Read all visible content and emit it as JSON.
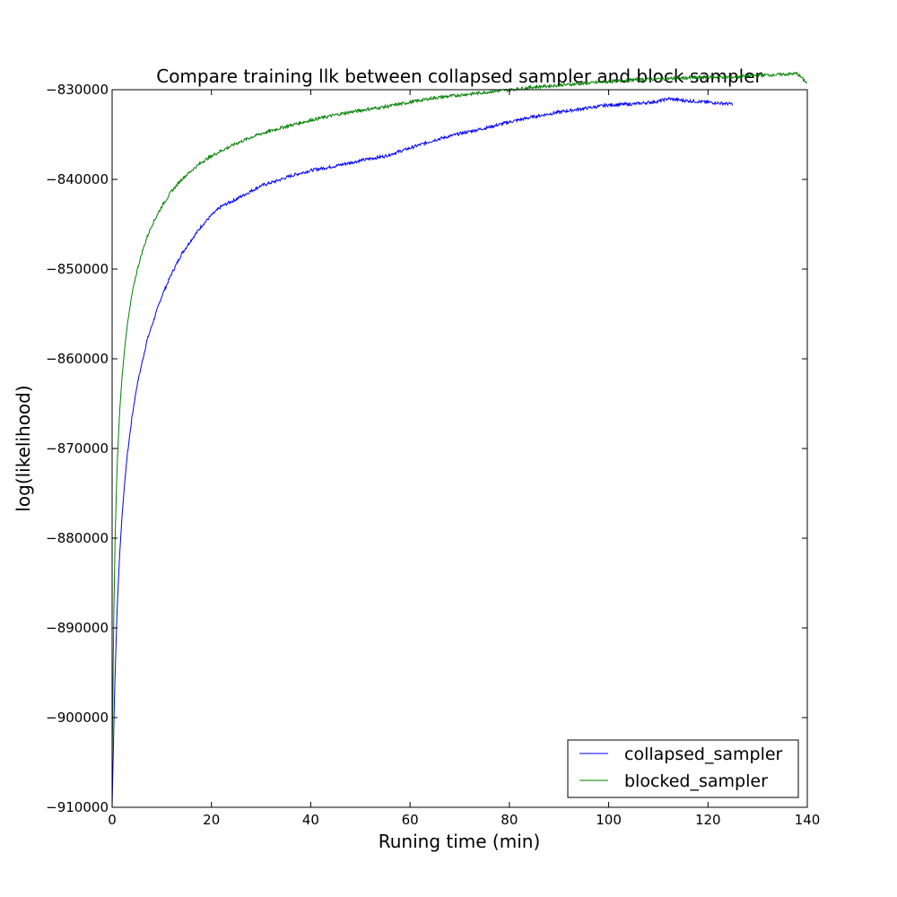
{
  "chart_data": {
    "type": "line",
    "title": "Compare training llk between collapsed sampler and block sampler",
    "xlabel": "Runing time (min)",
    "ylabel": "log(likelihood)",
    "xlim": [
      0,
      140
    ],
    "ylim": [
      -910000,
      -830000
    ],
    "xticks": [
      0,
      20,
      40,
      60,
      80,
      100,
      120,
      140
    ],
    "yticks": [
      -830000,
      -840000,
      -850000,
      -860000,
      -870000,
      -880000,
      -890000,
      -900000,
      -910000
    ],
    "xtick_labels": [
      "0",
      "20",
      "40",
      "60",
      "80",
      "100",
      "120",
      "140"
    ],
    "ytick_labels": [
      "−830000",
      "−840000",
      "−850000",
      "−860000",
      "−870000",
      "−880000",
      "−890000",
      "−900000",
      "−910000"
    ],
    "grid": false,
    "legend_position": "lower-right",
    "series": [
      {
        "name": "collapsed_sampler",
        "color": "#0000ff",
        "x": [
          0,
          0.5,
          1,
          1.5,
          2,
          2.5,
          3,
          4,
          5,
          6,
          7,
          8,
          10,
          12,
          14,
          16,
          18,
          20,
          22,
          25,
          28,
          30,
          33,
          36,
          40,
          45,
          50,
          55,
          60,
          65,
          70,
          75,
          80,
          85,
          90,
          95,
          100,
          105,
          110,
          112,
          115,
          120,
          125
        ],
        "y": [
          -910000,
          -897000,
          -888000,
          -882000,
          -877500,
          -874000,
          -871000,
          -866500,
          -863000,
          -860500,
          -858000,
          -856300,
          -853000,
          -850500,
          -848300,
          -846700,
          -845200,
          -844000,
          -843000,
          -842200,
          -841300,
          -840700,
          -840200,
          -839600,
          -839000,
          -838500,
          -837900,
          -837400,
          -836500,
          -835600,
          -834900,
          -834300,
          -833600,
          -833000,
          -832500,
          -832100,
          -831700,
          -831600,
          -831300,
          -831000,
          -831200,
          -831400,
          -831600
        ]
      },
      {
        "name": "blocked_sampler",
        "color": "#008000",
        "x": [
          0,
          0.3,
          0.6,
          1,
          1.5,
          2,
          2.5,
          3,
          4,
          5,
          6,
          7,
          8,
          10,
          12,
          14,
          16,
          18,
          20,
          22,
          25,
          28,
          30,
          35,
          40,
          45,
          50,
          55,
          60,
          65,
          70,
          75,
          80,
          85,
          90,
          95,
          100,
          105,
          110,
          115,
          120,
          125,
          130,
          135,
          138,
          140
        ],
        "y": [
          -905000,
          -890000,
          -880000,
          -872000,
          -866000,
          -862000,
          -859000,
          -856500,
          -852800,
          -850200,
          -848200,
          -846500,
          -845100,
          -843000,
          -841300,
          -840000,
          -839000,
          -838100,
          -837400,
          -836800,
          -836000,
          -835300,
          -834900,
          -834100,
          -833400,
          -832800,
          -832300,
          -831900,
          -831400,
          -830900,
          -830600,
          -830300,
          -830000,
          -829700,
          -829500,
          -829300,
          -829100,
          -828900,
          -828800,
          -828700,
          -828600,
          -828600,
          -828400,
          -828300,
          -828200,
          -829300
        ]
      }
    ]
  }
}
